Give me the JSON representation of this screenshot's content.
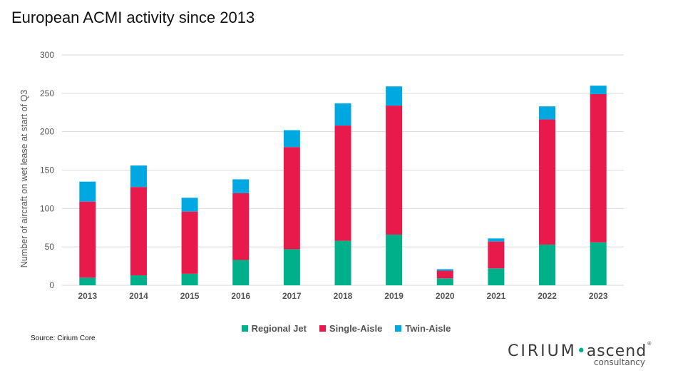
{
  "title": "European ACMI activity since 2013",
  "source": "Source: Cirium Core",
  "logo": {
    "brand": "CIRIUM",
    "dot": "•",
    "product": "ascend",
    "registered": "®",
    "sub": "consultancy"
  },
  "colors": {
    "regional_jet": "#00b08b",
    "single_aisle": "#e8194b",
    "twin_aisle": "#00a8e1",
    "grid": "#d9d9d9",
    "axis_text": "#555555"
  },
  "chart_data": {
    "type": "bar",
    "stacked": true,
    "title": "European ACMI activity since 2013",
    "xlabel": "",
    "ylabel": "Number of aircraft on wet lease at start of Q3",
    "ylim": [
      0,
      300
    ],
    "yticks": [
      0,
      50,
      100,
      150,
      200,
      250,
      300
    ],
    "grid": true,
    "legend_position": "bottom",
    "categories": [
      "2013",
      "2014",
      "2015",
      "2016",
      "2017",
      "2018",
      "2019",
      "2020",
      "2021",
      "2022",
      "2023"
    ],
    "series": [
      {
        "name": "Regional Jet",
        "values": [
          10,
          13,
          15,
          33,
          47,
          58,
          66,
          9,
          22,
          53,
          56
        ]
      },
      {
        "name": "Single-Aisle",
        "values": [
          99,
          115,
          81,
          87,
          133,
          150,
          168,
          10,
          35,
          163,
          193
        ]
      },
      {
        "name": "Twin-Aisle",
        "values": [
          26,
          28,
          18,
          18,
          22,
          29,
          25,
          2,
          4,
          17,
          11
        ]
      }
    ]
  }
}
